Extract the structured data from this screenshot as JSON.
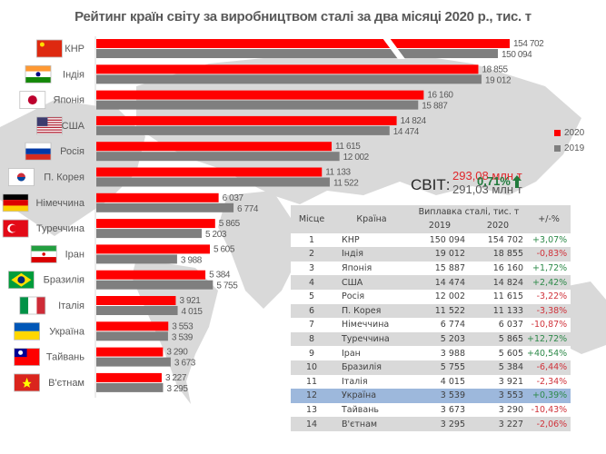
{
  "title": "Рейтинг країн світу за виробництвом сталі за два місяці 2020 р., тис. т",
  "colors": {
    "y2020": "#ff0000",
    "y2019": "#7f7f7f",
    "positive": "#2e8a4a",
    "negative": "#d0343c",
    "highlight": "#9db8dc"
  },
  "chart_data": {
    "type": "bar",
    "orientation": "horizontal",
    "title": "Рейтинг країн світу за виробництвом сталі за два місяці 2020 р., тис. т",
    "xlabel": "",
    "ylabel": "",
    "units": "тис. т",
    "axis_break": "КНР bars are truncated with a broken-axis gap",
    "categories": [
      "КНР",
      "Індія",
      "Японія",
      "США",
      "Росія",
      "П. Корея",
      "Німеччина",
      "Туреччина",
      "Іран",
      "Бразилія",
      "Італія",
      "Україна",
      "Тайвань",
      "В'єтнам"
    ],
    "series": [
      {
        "name": "2020",
        "values": [
          154702,
          18855,
          16160,
          14824,
          11615,
          11133,
          6037,
          5865,
          5605,
          5384,
          3921,
          3553,
          3290,
          3227
        ],
        "labels": [
          "154 702",
          "18 855",
          "16 160",
          "14 824",
          "11 615",
          "11 133",
          "6 037",
          "5 865",
          "5 605",
          "5 384",
          "3 921",
          "3 553",
          "3 290",
          "3 227"
        ]
      },
      {
        "name": "2019",
        "values": [
          150094,
          19012,
          15887,
          14474,
          12002,
          11522,
          6774,
          5203,
          3988,
          5755,
          4015,
          3539,
          3673,
          3295
        ],
        "labels": [
          "150 094",
          "19 012",
          "15 887",
          "14 474",
          "12 002",
          "11 522",
          "6 774",
          "5 203",
          "3 988",
          "5 755",
          "4 015",
          "3 539",
          "3 673",
          "3 295"
        ]
      }
    ],
    "legend": [
      "2020",
      "2019"
    ],
    "legend_position": "right",
    "grid": false
  },
  "flags": [
    "china",
    "india",
    "japan",
    "usa",
    "russia",
    "south-korea",
    "germany",
    "turkey",
    "iran",
    "brazil",
    "italy",
    "ukraine",
    "taiwan",
    "vietnam"
  ],
  "world": {
    "label": "СВІТ:",
    "value_2020": "293,08 млн т",
    "value_2019": "291,03 млн т",
    "change": "0,71%",
    "change_icon": "arrow-up-icon"
  },
  "table": {
    "headers": {
      "rank": "Місце",
      "country": "Країна",
      "production": "Виплавка сталі, тис. т",
      "y2019": "2019",
      "y2020": "2020",
      "change": "+/-%"
    },
    "rows": [
      {
        "rank": "1",
        "country": "КНР",
        "v2019": "150 094",
        "v2020": "154 702",
        "change": "+3,07%",
        "sign": "pos"
      },
      {
        "rank": "2",
        "country": "Індія",
        "v2019": "19 012",
        "v2020": "18 855",
        "change": "-0,83%",
        "sign": "neg"
      },
      {
        "rank": "3",
        "country": "Японія",
        "v2019": "15 887",
        "v2020": "16 160",
        "change": "+1,72%",
        "sign": "pos"
      },
      {
        "rank": "4",
        "country": "США",
        "v2019": "14 474",
        "v2020": "14 824",
        "change": "+2,42%",
        "sign": "pos"
      },
      {
        "rank": "5",
        "country": "Росія",
        "v2019": "12 002",
        "v2020": "11 615",
        "change": "-3,22%",
        "sign": "neg"
      },
      {
        "rank": "6",
        "country": "П. Корея",
        "v2019": "11 522",
        "v2020": "11 133",
        "change": "-3,38%",
        "sign": "neg"
      },
      {
        "rank": "7",
        "country": "Німеччина",
        "v2019": "6 774",
        "v2020": "6 037",
        "change": "-10,87%",
        "sign": "neg"
      },
      {
        "rank": "8",
        "country": "Туреччина",
        "v2019": "5 203",
        "v2020": "5 865",
        "change": "+12,72%",
        "sign": "pos"
      },
      {
        "rank": "9",
        "country": "Іран",
        "v2019": "3 988",
        "v2020": "5 605",
        "change": "+40,54%",
        "sign": "pos"
      },
      {
        "rank": "10",
        "country": "Бразилія",
        "v2019": "5 755",
        "v2020": "5 384",
        "change": "-6,44%",
        "sign": "neg"
      },
      {
        "rank": "11",
        "country": "Італія",
        "v2019": "4 015",
        "v2020": "3 921",
        "change": "-2,34%",
        "sign": "neg"
      },
      {
        "rank": "12",
        "country": "Україна",
        "v2019": "3 539",
        "v2020": "3 553",
        "change": "+0,39%",
        "sign": "pos",
        "highlight": true
      },
      {
        "rank": "13",
        "country": "Тайвань",
        "v2019": "3 673",
        "v2020": "3 290",
        "change": "-10,43%",
        "sign": "neg"
      },
      {
        "rank": "14",
        "country": "В'єтнам",
        "v2019": "3 295",
        "v2020": "3 227",
        "change": "-2,06%",
        "sign": "neg"
      }
    ]
  }
}
